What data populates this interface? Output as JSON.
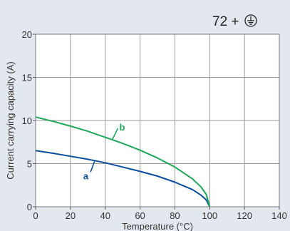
{
  "header": {
    "annotation": "72 +",
    "symbol": "protective-earth-icon"
  },
  "chart_data": {
    "type": "line",
    "title": "",
    "xlabel": "Temperature (°C)",
    "ylabel": "Current carrying capacity (A)",
    "xlim": [
      0,
      140
    ],
    "ylim": [
      0,
      20
    ],
    "xticks": [
      "0",
      "20",
      "40",
      "60",
      "80",
      "100",
      "120",
      "140"
    ],
    "yticks": [
      "0",
      "5",
      "10",
      "15",
      "20"
    ],
    "grid": true,
    "series": [
      {
        "name": "a",
        "color": "#0a4d9c",
        "x": [
          0,
          10,
          20,
          30,
          40,
          50,
          60,
          70,
          80,
          90,
          95,
          98,
          100
        ],
        "y": [
          6.5,
          6.2,
          5.85,
          5.5,
          5.1,
          4.6,
          4.1,
          3.55,
          2.85,
          2.0,
          1.35,
          0.8,
          0
        ]
      },
      {
        "name": "b",
        "color": "#1ea65a",
        "x": [
          0,
          10,
          20,
          30,
          40,
          50,
          60,
          70,
          80,
          90,
          95,
          98,
          100
        ],
        "y": [
          10.4,
          9.9,
          9.35,
          8.75,
          8.05,
          7.35,
          6.55,
          5.65,
          4.6,
          3.25,
          2.3,
          1.45,
          0
        ]
      }
    ],
    "annotations": [
      {
        "series": "a",
        "text": "a"
      },
      {
        "series": "b",
        "text": "b"
      }
    ]
  }
}
